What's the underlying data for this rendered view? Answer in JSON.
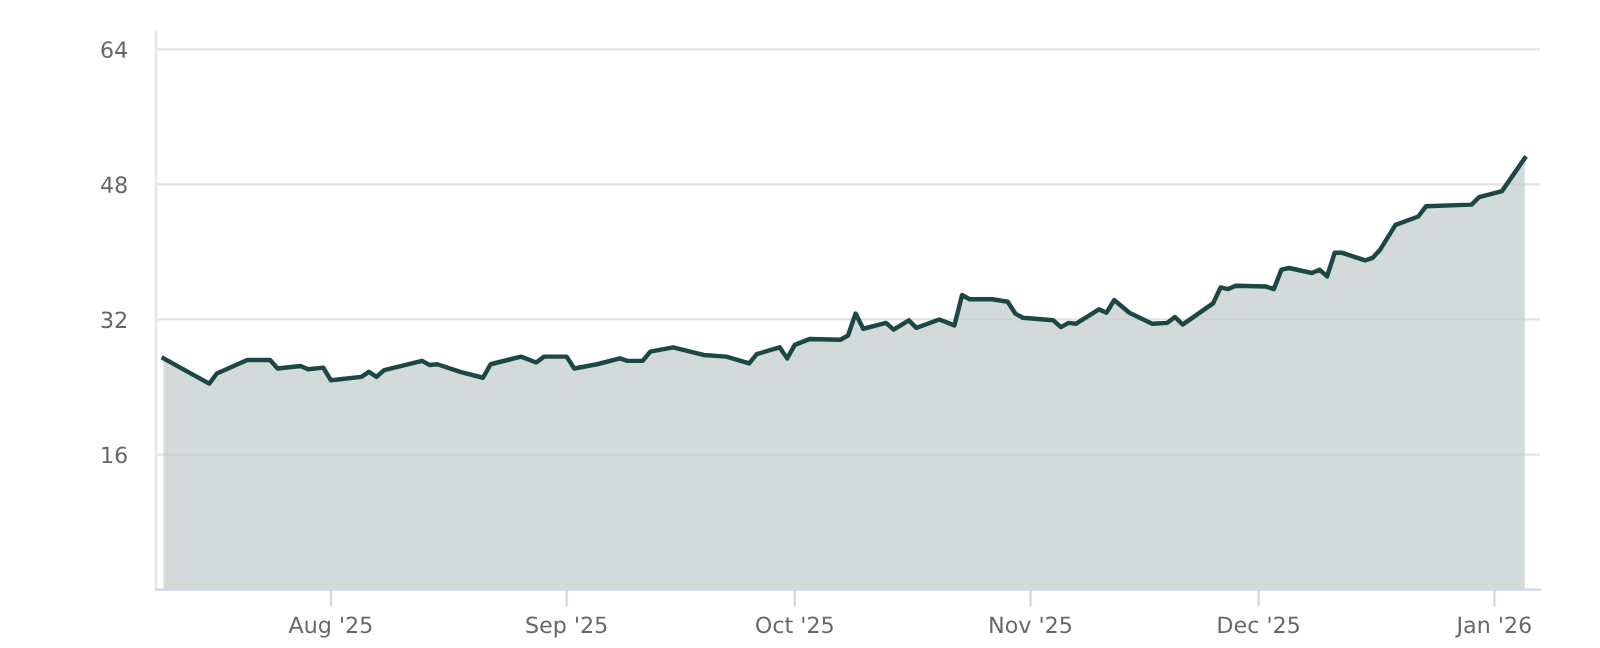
{
  "chart_data": {
    "type": "area",
    "x": [
      "2025-07-10",
      "2025-07-16",
      "2025-07-17",
      "2025-07-21",
      "2025-07-24",
      "2025-07-25",
      "2025-07-28",
      "2025-07-29",
      "2025-07-31",
      "2025-08-01",
      "2025-08-05",
      "2025-08-06",
      "2025-08-07",
      "2025-08-08",
      "2025-08-13",
      "2025-08-14",
      "2025-08-15",
      "2025-08-18",
      "2025-08-21",
      "2025-08-22",
      "2025-08-26",
      "2025-08-28",
      "2025-08-29",
      "2025-09-01",
      "2025-09-02",
      "2025-09-05",
      "2025-09-08",
      "2025-09-09",
      "2025-09-11",
      "2025-09-12",
      "2025-09-15",
      "2025-09-19",
      "2025-09-22",
      "2025-09-25",
      "2025-09-26",
      "2025-09-29",
      "2025-09-30",
      "2025-10-01",
      "2025-10-03",
      "2025-10-07",
      "2025-10-08",
      "2025-10-09",
      "2025-10-10",
      "2025-10-13",
      "2025-10-14",
      "2025-10-16",
      "2025-10-17",
      "2025-10-20",
      "2025-10-22",
      "2025-10-23",
      "2025-10-24",
      "2025-10-27",
      "2025-10-29",
      "2025-10-30",
      "2025-10-31",
      "2025-11-04",
      "2025-11-05",
      "2025-11-06",
      "2025-11-07",
      "2025-11-10",
      "2025-11-11",
      "2025-11-12",
      "2025-11-14",
      "2025-11-17",
      "2025-11-19",
      "2025-11-20",
      "2025-11-21",
      "2025-11-25",
      "2025-11-26",
      "2025-11-27",
      "2025-11-28",
      "2025-12-02",
      "2025-12-03",
      "2025-12-04",
      "2025-12-05",
      "2025-12-08",
      "2025-12-09",
      "2025-12-10",
      "2025-12-11",
      "2025-12-12",
      "2025-12-15",
      "2025-12-16",
      "2025-12-17",
      "2025-12-19",
      "2025-12-22",
      "2025-12-23",
      "2025-12-29",
      "2025-12-30",
      "2026-01-02",
      "2026-01-05"
    ],
    "series": [
      {
        "color": "#1b4745",
        "values": [
          27.4,
          24.4,
          25.6,
          27.2,
          27.2,
          26.2,
          26.5,
          26.1,
          26.3,
          24.8,
          25.2,
          25.8,
          25.2,
          26.0,
          27.1,
          26.6,
          26.7,
          25.8,
          25.1,
          26.7,
          27.6,
          26.9,
          27.6,
          27.6,
          26.2,
          26.7,
          27.4,
          27.1,
          27.1,
          28.2,
          28.7,
          27.8,
          27.6,
          26.8,
          27.9,
          28.7,
          27.4,
          29.0,
          29.7,
          29.6,
          30.1,
          32.7,
          30.9,
          31.6,
          30.8,
          31.9,
          31.0,
          32.0,
          31.3,
          34.9,
          34.4,
          34.4,
          34.1,
          32.7,
          32.2,
          31.9,
          31.1,
          31.6,
          31.5,
          33.2,
          32.8,
          34.3,
          32.8,
          31.5,
          31.6,
          32.3,
          31.4,
          33.9,
          35.8,
          35.6,
          36.0,
          35.9,
          35.6,
          37.9,
          38.1,
          37.5,
          37.9,
          37.1,
          39.9,
          39.9,
          39.0,
          39.3,
          40.3,
          43.2,
          44.2,
          45.4,
          45.6,
          46.5,
          47.2,
          51.1
        ]
      }
    ],
    "xlim": [
      "2025-07-09",
      "2026-01-07"
    ],
    "xticks": [
      {
        "value": "2025-08-01",
        "label": "Aug '25"
      },
      {
        "value": "2025-09-01",
        "label": "Sep '25"
      },
      {
        "value": "2025-10-01",
        "label": "Oct '25"
      },
      {
        "value": "2025-11-01",
        "label": "Nov '25"
      },
      {
        "value": "2025-12-01",
        "label": "Dec '25"
      },
      {
        "value": "2026-01-01",
        "label": "Jan '26"
      }
    ],
    "ylim": [
      0,
      66
    ],
    "yticks": [
      16,
      32,
      48,
      64
    ],
    "grid": "y"
  }
}
